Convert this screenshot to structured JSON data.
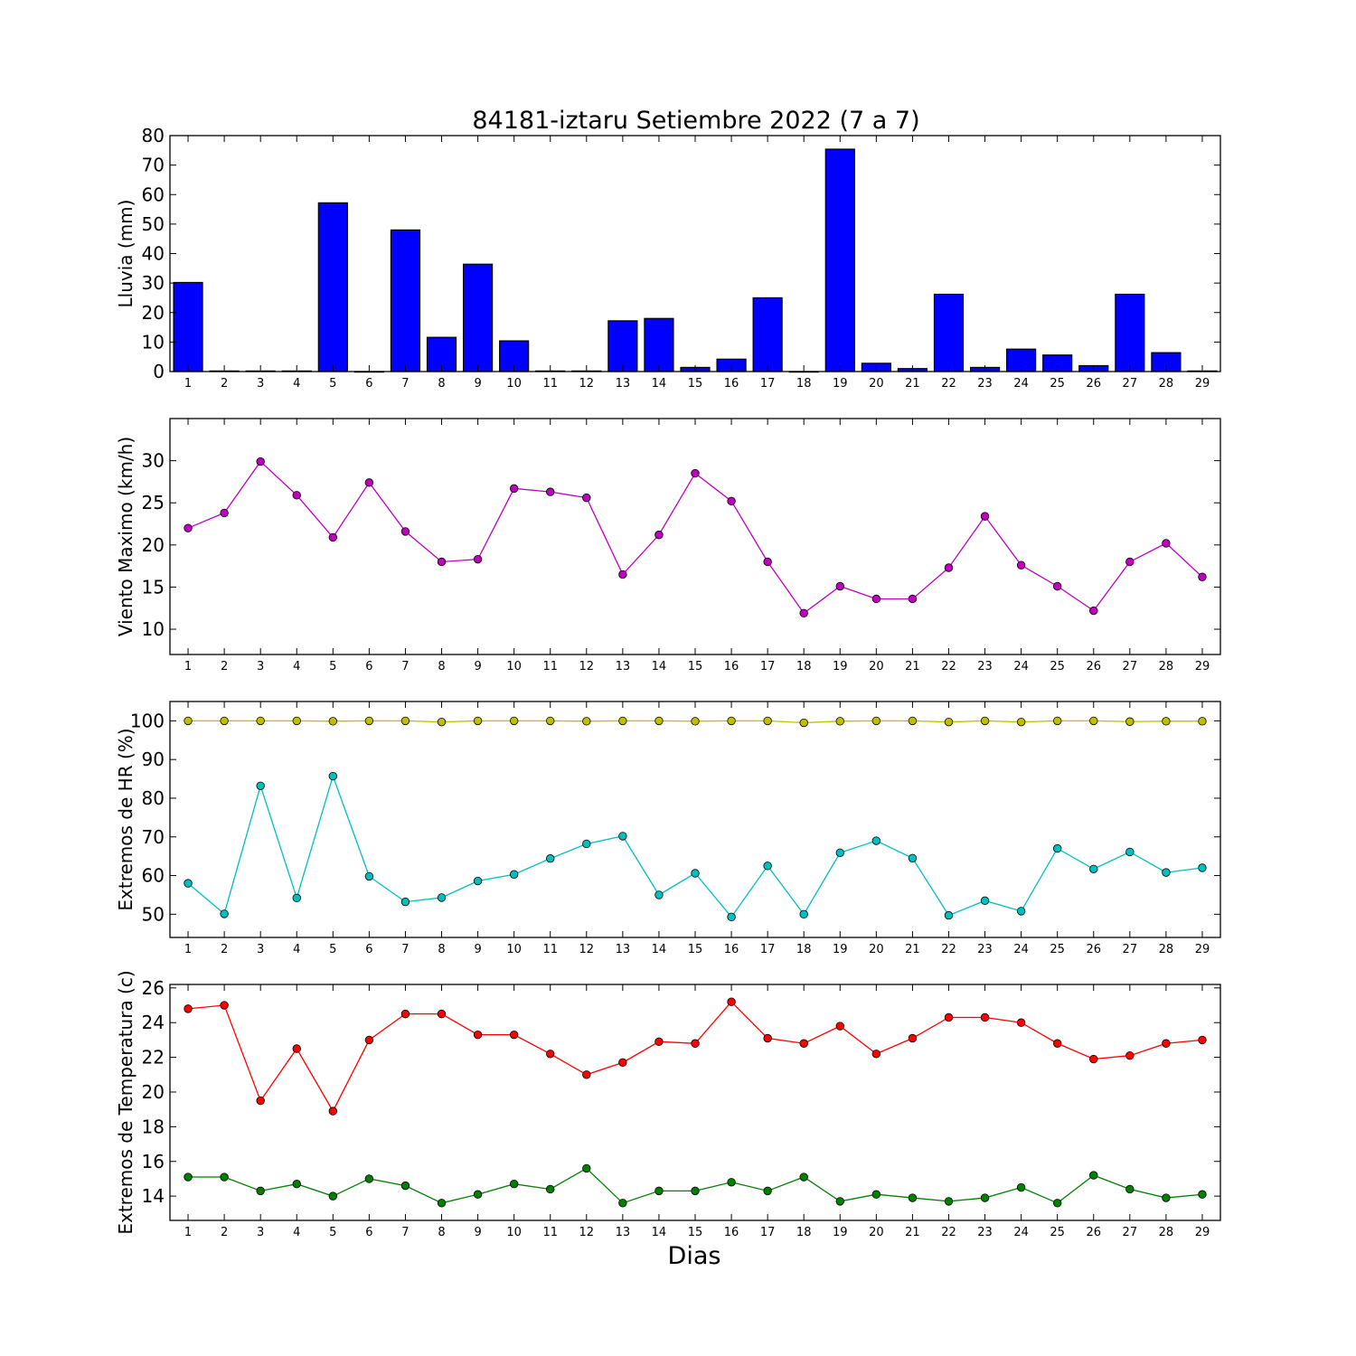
{
  "figure": {
    "title": "84181-iztaru Setiembre 2022  (7 a 7)",
    "xlabel": "Dias"
  },
  "chart_data": [
    {
      "type": "bar",
      "ylabel": "Lluvia (mm)",
      "ylim": [
        0,
        80
      ],
      "yticks": [
        0,
        10,
        20,
        30,
        40,
        50,
        60,
        70,
        80
      ],
      "categories": [
        1,
        2,
        3,
        4,
        5,
        6,
        7,
        8,
        9,
        10,
        11,
        12,
        13,
        14,
        15,
        16,
        17,
        18,
        19,
        20,
        21,
        22,
        23,
        24,
        25,
        26,
        27,
        28,
        29
      ],
      "series": [
        {
          "color": "#0000ff",
          "values": [
            30.2,
            0.2,
            0.2,
            0.2,
            57.2,
            0,
            48,
            11.6,
            36.4,
            10.4,
            0.2,
            0.2,
            17.2,
            18,
            1.4,
            4.2,
            25,
            0,
            75.4,
            2.8,
            1,
            26.2,
            1.4,
            7.6,
            5.6,
            2,
            26.2,
            6.4,
            0.2
          ]
        }
      ]
    },
    {
      "type": "line",
      "ylabel": "Viento Maximo (km/h)",
      "ylim": [
        7,
        35
      ],
      "yticks": [
        10,
        15,
        20,
        25,
        30
      ],
      "categories": [
        1,
        2,
        3,
        4,
        5,
        6,
        7,
        8,
        9,
        10,
        11,
        12,
        13,
        14,
        15,
        16,
        17,
        18,
        19,
        20,
        21,
        22,
        23,
        24,
        25,
        26,
        27,
        28,
        29
      ],
      "series": [
        {
          "color": "#bf00bf",
          "values": [
            22,
            23.8,
            29.9,
            25.9,
            20.9,
            27.4,
            21.6,
            18,
            18.3,
            26.7,
            26.3,
            25.6,
            16.5,
            21.2,
            28.5,
            25.2,
            18,
            11.9,
            15.1,
            13.6,
            13.6,
            17.3,
            23.4,
            17.6,
            15.1,
            12.2,
            18,
            20.2,
            16.2
          ]
        }
      ]
    },
    {
      "type": "line",
      "ylabel": "Extremos de HR (%)",
      "ylim": [
        44,
        105
      ],
      "yticks": [
        50,
        60,
        70,
        80,
        90,
        100
      ],
      "categories": [
        1,
        2,
        3,
        4,
        5,
        6,
        7,
        8,
        9,
        10,
        11,
        12,
        13,
        14,
        15,
        16,
        17,
        18,
        19,
        20,
        21,
        22,
        23,
        24,
        25,
        26,
        27,
        28,
        29
      ],
      "series": [
        {
          "color": "#bfbf00",
          "values": [
            100,
            100,
            100,
            100,
            99.9,
            100,
            100,
            99.7,
            100,
            100,
            100,
            99.9,
            100,
            100,
            99.9,
            100,
            100,
            99.5,
            99.9,
            100,
            100,
            99.7,
            100,
            99.7,
            100,
            100,
            99.8,
            99.9,
            99.9
          ]
        },
        {
          "color": "#00bfbf",
          "values": [
            58,
            50.1,
            83.2,
            54.2,
            85.7,
            59.8,
            53.2,
            54.3,
            58.6,
            60.3,
            64.4,
            68.2,
            70.2,
            55,
            60.6,
            49.3,
            62.5,
            50,
            65.9,
            69,
            64.5,
            49.7,
            53.5,
            50.8,
            67,
            61.7,
            66.1,
            60.8,
            62
          ]
        }
      ]
    },
    {
      "type": "line",
      "ylabel": "Extremos de Temperatura (c)",
      "ylim": [
        12.6,
        26.2
      ],
      "yticks": [
        14,
        16,
        18,
        20,
        22,
        24,
        26
      ],
      "categories": [
        1,
        2,
        3,
        4,
        5,
        6,
        7,
        8,
        9,
        10,
        11,
        12,
        13,
        14,
        15,
        16,
        17,
        18,
        19,
        20,
        21,
        22,
        23,
        24,
        25,
        26,
        27,
        28,
        29
      ],
      "series": [
        {
          "color": "#ff0000",
          "values": [
            24.8,
            25,
            19.5,
            22.5,
            18.9,
            23,
            24.5,
            24.5,
            23.3,
            23.3,
            22.2,
            21,
            21.7,
            22.9,
            22.8,
            25.2,
            23.1,
            22.8,
            23.8,
            22.2,
            23.1,
            24.3,
            24.3,
            24,
            22.8,
            21.9,
            22.1,
            22.8,
            23
          ]
        },
        {
          "color": "#008000",
          "values": [
            15.1,
            15.1,
            14.3,
            14.7,
            14,
            15,
            14.6,
            13.6,
            14.1,
            14.7,
            14.4,
            15.6,
            13.6,
            14.3,
            14.3,
            14.8,
            14.3,
            15.1,
            13.7,
            14.1,
            13.9,
            13.7,
            13.9,
            14.5,
            13.6,
            15.2,
            14.4,
            13.9,
            14.1
          ]
        }
      ]
    }
  ]
}
